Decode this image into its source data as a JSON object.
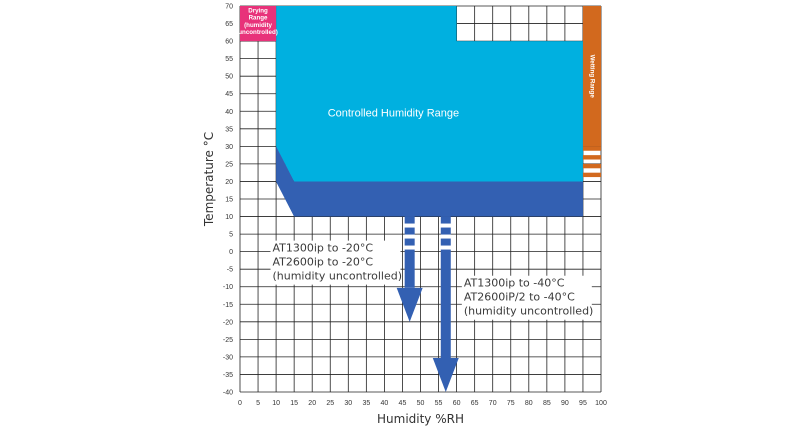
{
  "chart_data": {
    "type": "area",
    "xlabel": "Humidity %RH",
    "ylabel": "Temperature °C",
    "xlim": [
      0,
      100
    ],
    "ylim": [
      -40,
      70
    ],
    "x_ticks": [
      0,
      5,
      10,
      15,
      20,
      25,
      30,
      35,
      40,
      45,
      50,
      55,
      60,
      65,
      70,
      75,
      80,
      85,
      90,
      95,
      100
    ],
    "y_ticks": [
      70,
      65,
      60,
      55,
      50,
      45,
      40,
      35,
      30,
      25,
      20,
      15,
      10,
      5,
      0,
      -5,
      -10,
      -15,
      -20,
      -25,
      -30,
      -35,
      -40
    ],
    "grid": true,
    "regions": [
      {
        "name": "Controlled Humidity Range",
        "color": "#00b0e0",
        "polygon": [
          [
            10,
            70
          ],
          [
            60,
            70
          ],
          [
            60,
            60
          ],
          [
            95,
            60
          ],
          [
            95,
            20
          ],
          [
            15,
            20
          ],
          [
            10,
            30
          ]
        ]
      },
      {
        "name": "",
        "color": "#3360b2",
        "polygon": [
          [
            10,
            30
          ],
          [
            15,
            20
          ],
          [
            95,
            20
          ],
          [
            95,
            10
          ],
          [
            15,
            10
          ],
          [
            10,
            20
          ]
        ]
      },
      {
        "name": "Drying Range (humidity uncontrolled)",
        "lines": [
          "Drying",
          "Range",
          "(humidity",
          "uncontrolled)"
        ],
        "color": "#e8327a",
        "polygon": [
          [
            0,
            70
          ],
          [
            10,
            70
          ],
          [
            10,
            60
          ],
          [
            0,
            60
          ]
        ]
      },
      {
        "name": "Wetting Range",
        "color": "#d2691e",
        "polygon": [
          [
            95,
            70
          ],
          [
            100,
            70
          ],
          [
            100,
            30
          ],
          [
            95,
            30
          ]
        ]
      }
    ],
    "wetting_stripes": {
      "color": "#d2691e",
      "y_from": 20,
      "y_to": 30
    },
    "arrows": [
      {
        "x": 47,
        "y_from": 10,
        "y_to": -20,
        "color": "#3360b2"
      },
      {
        "x": 57,
        "y_from": 10,
        "y_to": -40,
        "color": "#3360b2"
      }
    ],
    "annotations": [
      {
        "lines": [
          "AT1300ip to -20°C",
          "AT2600ip to -20°C",
          "(humidity uncontrolled)"
        ],
        "x": 9,
        "y": 0
      },
      {
        "lines": [
          "AT1300ip to -40°C",
          "AT2600iP/2 to -40°C",
          "(humidity uncontrolled)"
        ],
        "x": 62,
        "y": -10
      }
    ]
  }
}
